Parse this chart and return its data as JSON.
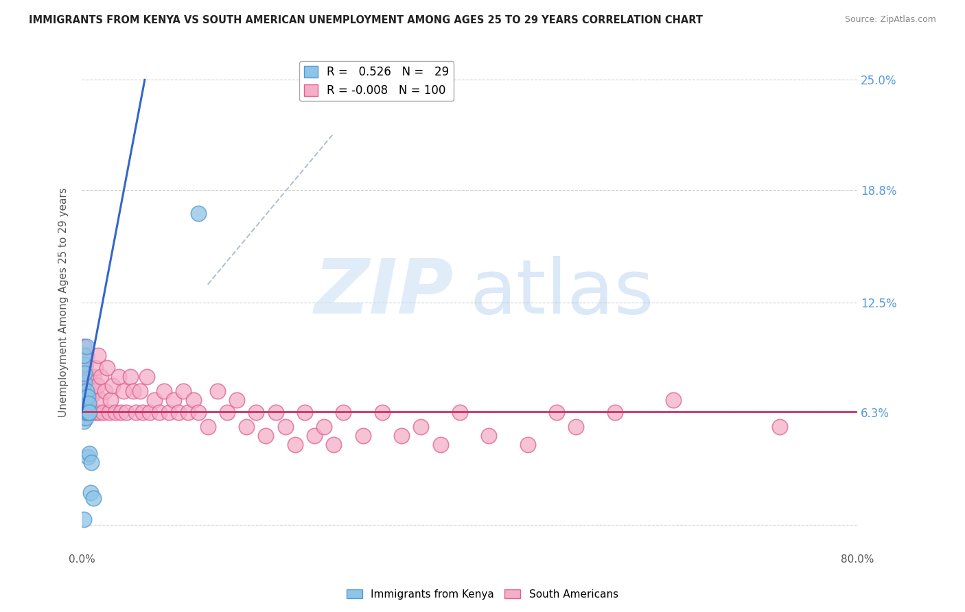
{
  "title": "IMMIGRANTS FROM KENYA VS SOUTH AMERICAN UNEMPLOYMENT AMONG AGES 25 TO 29 YEARS CORRELATION CHART",
  "source": "Source: ZipAtlas.com",
  "ylabel": "Unemployment Among Ages 25 to 29 years",
  "xlim": [
    0,
    0.8
  ],
  "ylim": [
    -0.015,
    0.265
  ],
  "right_ytick_vals": [
    0.0,
    0.063,
    0.125,
    0.188,
    0.25
  ],
  "right_yticklabels": [
    "",
    "6.3%",
    "12.5%",
    "18.8%",
    "25.0%"
  ],
  "grid_color": "#cccccc",
  "background_color": "#ffffff",
  "kenya_color": "#8ec4e8",
  "kenya_edge_color": "#5599cc",
  "sa_color": "#f4afc8",
  "sa_edge_color": "#e06090",
  "kenya_R": 0.526,
  "kenya_N": 29,
  "sa_R": -0.008,
  "sa_N": 100,
  "legend_label_kenya": "Immigrants from Kenya",
  "legend_label_sa": "South Americans",
  "kenya_line_color": "#3366cc",
  "sa_line_color": "#cc3366",
  "dash_line_color": "#aabbcc",
  "kenya_line_x0": 0.0,
  "kenya_line_y0": 0.063,
  "kenya_line_x1": 0.065,
  "kenya_line_y1": 0.25,
  "sa_line_x0": 0.0,
  "sa_line_y0": 0.0635,
  "sa_line_x1": 0.8,
  "sa_line_y1": 0.0635,
  "dash_line_x0": 0.13,
  "dash_line_y0": 0.135,
  "dash_line_x1": 0.26,
  "dash_line_y1": 0.22,
  "kenya_x": [
    0.001,
    0.001,
    0.002,
    0.002,
    0.002,
    0.002,
    0.002,
    0.003,
    0.003,
    0.003,
    0.003,
    0.003,
    0.004,
    0.004,
    0.004,
    0.005,
    0.005,
    0.005,
    0.006,
    0.006,
    0.006,
    0.007,
    0.007,
    0.008,
    0.008,
    0.009,
    0.01,
    0.012,
    0.12
  ],
  "kenya_y": [
    0.063,
    0.065,
    0.09,
    0.095,
    0.063,
    0.058,
    0.003,
    0.063,
    0.068,
    0.07,
    0.08,
    0.085,
    0.06,
    0.063,
    0.072,
    0.063,
    0.075,
    0.1,
    0.063,
    0.072,
    0.038,
    0.063,
    0.068,
    0.04,
    0.063,
    0.018,
    0.035,
    0.015,
    0.175
  ],
  "sa_x": [
    0.001,
    0.001,
    0.001,
    0.002,
    0.002,
    0.002,
    0.002,
    0.002,
    0.003,
    0.003,
    0.003,
    0.003,
    0.003,
    0.004,
    0.004,
    0.004,
    0.004,
    0.005,
    0.005,
    0.005,
    0.005,
    0.006,
    0.006,
    0.006,
    0.007,
    0.007,
    0.007,
    0.008,
    0.008,
    0.009,
    0.009,
    0.01,
    0.01,
    0.011,
    0.012,
    0.012,
    0.013,
    0.014,
    0.015,
    0.016,
    0.017,
    0.018,
    0.019,
    0.02,
    0.022,
    0.024,
    0.026,
    0.028,
    0.03,
    0.032,
    0.035,
    0.038,
    0.04,
    0.043,
    0.046,
    0.05,
    0.053,
    0.056,
    0.06,
    0.063,
    0.067,
    0.07,
    0.075,
    0.08,
    0.085,
    0.09,
    0.095,
    0.1,
    0.105,
    0.11,
    0.115,
    0.12,
    0.13,
    0.14,
    0.15,
    0.16,
    0.17,
    0.18,
    0.19,
    0.2,
    0.21,
    0.22,
    0.23,
    0.24,
    0.25,
    0.26,
    0.27,
    0.29,
    0.31,
    0.33,
    0.35,
    0.37,
    0.39,
    0.42,
    0.46,
    0.49,
    0.51,
    0.55,
    0.61,
    0.72
  ],
  "sa_y": [
    0.08,
    0.09,
    0.07,
    0.085,
    0.095,
    0.1,
    0.06,
    0.073,
    0.075,
    0.088,
    0.063,
    0.07,
    0.08,
    0.085,
    0.075,
    0.063,
    0.09,
    0.063,
    0.07,
    0.08,
    0.095,
    0.063,
    0.07,
    0.078,
    0.063,
    0.073,
    0.082,
    0.063,
    0.07,
    0.063,
    0.075,
    0.063,
    0.08,
    0.073,
    0.083,
    0.063,
    0.075,
    0.088,
    0.063,
    0.078,
    0.095,
    0.063,
    0.07,
    0.083,
    0.063,
    0.075,
    0.088,
    0.063,
    0.07,
    0.078,
    0.063,
    0.083,
    0.063,
    0.075,
    0.063,
    0.083,
    0.075,
    0.063,
    0.075,
    0.063,
    0.083,
    0.063,
    0.07,
    0.063,
    0.075,
    0.063,
    0.07,
    0.063,
    0.075,
    0.063,
    0.07,
    0.063,
    0.055,
    0.075,
    0.063,
    0.07,
    0.055,
    0.063,
    0.05,
    0.063,
    0.055,
    0.045,
    0.063,
    0.05,
    0.055,
    0.045,
    0.063,
    0.05,
    0.063,
    0.05,
    0.055,
    0.045,
    0.063,
    0.05,
    0.045,
    0.063,
    0.055,
    0.063,
    0.07,
    0.055
  ]
}
